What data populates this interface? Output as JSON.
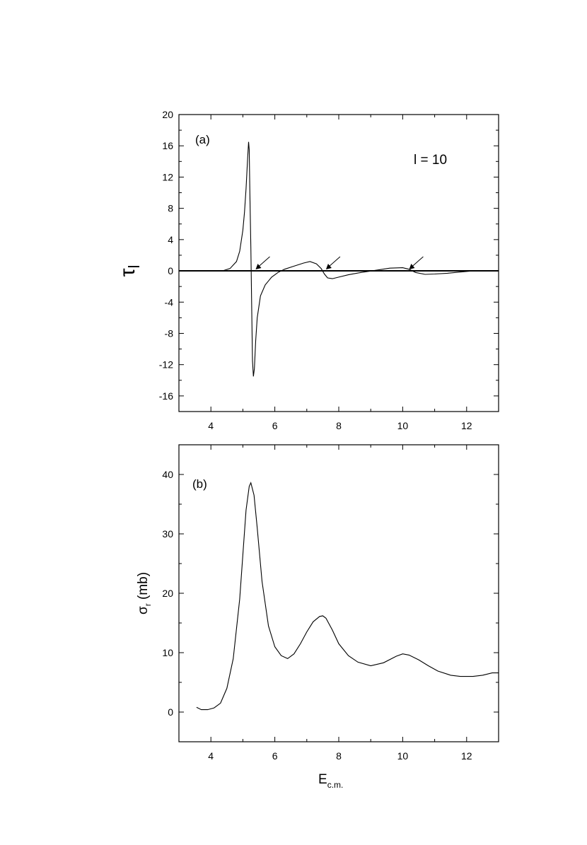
{
  "chart_data": [
    {
      "type": "line",
      "panel_label": "(a)",
      "annotation": "l = 10",
      "ylabel": "τ",
      "ylabel_sub": "l",
      "xlabel": "",
      "xlim": [
        3,
        13
      ],
      "ylim": [
        -18,
        20
      ],
      "xticks": [
        4,
        6,
        8,
        10,
        12
      ],
      "yticks": [
        -16,
        -12,
        -8,
        -4,
        0,
        4,
        8,
        12,
        16,
        20
      ],
      "tick_labels_y": [
        "-16",
        "-12",
        "-8",
        "-4",
        "0",
        "4",
        "8",
        "12",
        "16",
        "20"
      ],
      "tick_labels_x": [
        "4",
        "6",
        "8",
        "10",
        "12"
      ],
      "baseline": 0,
      "grid": false,
      "series": [
        {
          "x": [
            3.0,
            4.4,
            4.6,
            4.8,
            4.9,
            5.0,
            5.05,
            5.1,
            5.15,
            5.18,
            5.2,
            5.22,
            5.25,
            5.28,
            5.3,
            5.33,
            5.36,
            5.4,
            5.45,
            5.55,
            5.7,
            5.9,
            6.1,
            6.3,
            6.6,
            6.9,
            7.1,
            7.3,
            7.45,
            7.55,
            7.65,
            7.8,
            8.0,
            8.3,
            8.7,
            9.2,
            9.6,
            10.0,
            10.2,
            10.4,
            10.7,
            11.0,
            11.4,
            11.8,
            12.2
          ],
          "y": [
            0,
            0.05,
            0.3,
            1.2,
            2.5,
            5.2,
            7.5,
            10.5,
            14.5,
            16.5,
            15.5,
            10.0,
            3.0,
            -6.0,
            -11.5,
            -13.5,
            -12.5,
            -9.0,
            -6.0,
            -3.2,
            -1.8,
            -0.8,
            -0.2,
            0.2,
            0.6,
            1.0,
            1.2,
            0.9,
            0.3,
            -0.4,
            -0.9,
            -1.0,
            -0.8,
            -0.5,
            -0.2,
            0.1,
            0.35,
            0.4,
            0.2,
            -0.2,
            -0.45,
            -0.4,
            -0.3,
            -0.15,
            0
          ]
        }
      ],
      "arrows_at_x": [
        5.4,
        7.6,
        10.2
      ]
    },
    {
      "type": "line",
      "panel_label": "(b)",
      "ylabel": "σ",
      "ylabel_sub": "r",
      "ylabel_unit": " (mb)",
      "xlabel": "E",
      "xlabel_sub": "c.m.",
      "xlim": [
        3,
        13
      ],
      "ylim": [
        -5,
        45
      ],
      "xticks": [
        4,
        6,
        8,
        10,
        12
      ],
      "yticks": [
        0,
        10,
        20,
        30,
        40
      ],
      "tick_labels_y": [
        "0",
        "10",
        "20",
        "30",
        "40"
      ],
      "tick_labels_x": [
        "4",
        "6",
        "8",
        "10",
        "12"
      ],
      "grid": false,
      "series": [
        {
          "x": [
            3.55,
            3.7,
            3.9,
            4.1,
            4.3,
            4.5,
            4.7,
            4.9,
            5.0,
            5.1,
            5.2,
            5.25,
            5.35,
            5.45,
            5.6,
            5.8,
            6.0,
            6.2,
            6.4,
            6.6,
            6.8,
            7.0,
            7.2,
            7.4,
            7.5,
            7.6,
            7.8,
            8.0,
            8.3,
            8.6,
            9.0,
            9.4,
            9.8,
            10.0,
            10.2,
            10.5,
            10.8,
            11.1,
            11.5,
            11.8,
            12.2,
            12.5,
            12.8,
            13.0
          ],
          "y": [
            0.8,
            0.4,
            0.4,
            0.7,
            1.5,
            4.0,
            9.0,
            19.0,
            26.5,
            34.0,
            38.0,
            38.6,
            36.5,
            31.0,
            22.0,
            14.5,
            11.0,
            9.5,
            9.0,
            9.8,
            11.5,
            13.5,
            15.2,
            16.1,
            16.2,
            15.8,
            13.8,
            11.5,
            9.5,
            8.4,
            7.8,
            8.3,
            9.4,
            9.8,
            9.6,
            8.8,
            7.8,
            6.9,
            6.2,
            6.0,
            6.0,
            6.2,
            6.6,
            6.6
          ]
        }
      ]
    }
  ]
}
